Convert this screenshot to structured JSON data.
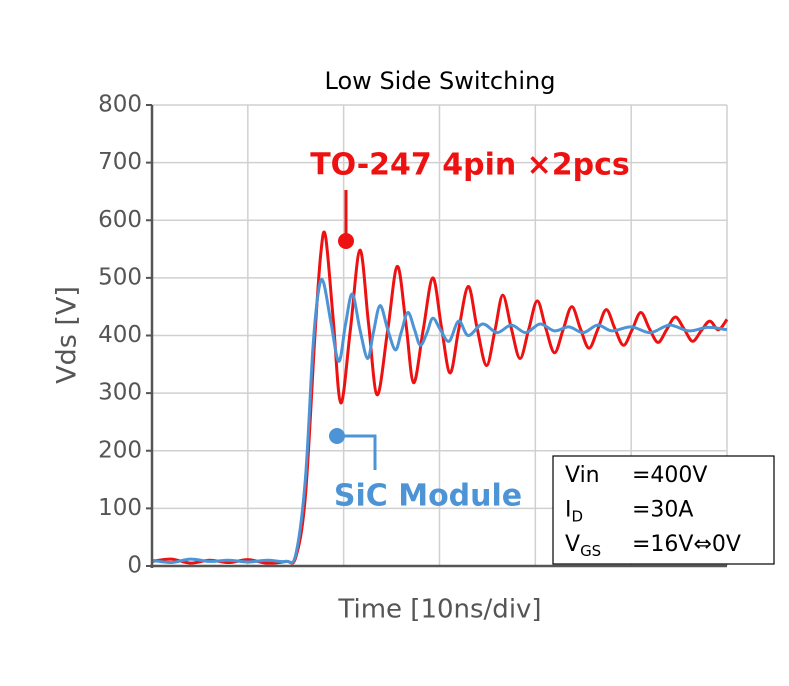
{
  "chart_data": {
    "type": "line",
    "title": "Low Side Switching",
    "ylabel": "Vds [V]",
    "xlabel": "Time [10ns/div]",
    "xlim": [
      0,
      6
    ],
    "ylim": [
      0,
      800
    ],
    "yticks": [
      0,
      100,
      200,
      300,
      400,
      500,
      600,
      700,
      800
    ],
    "grid": true,
    "series": [
      {
        "name": "TO-247 4pin ×2pcs",
        "color": "#ee1111",
        "x": [
          0,
          0.2,
          0.4,
          0.6,
          0.8,
          1.0,
          1.2,
          1.4,
          1.5,
          1.6,
          1.7,
          1.76,
          1.81,
          1.89,
          1.97,
          2.07,
          2.17,
          2.26,
          2.35,
          2.46,
          2.56,
          2.65,
          2.73,
          2.83,
          2.93,
          3.02,
          3.11,
          3.2,
          3.3,
          3.39,
          3.49,
          3.58,
          3.66,
          3.75,
          3.84,
          3.93,
          4.02,
          4.11,
          4.2,
          4.29,
          4.38,
          4.47,
          4.56,
          4.65,
          4.74,
          4.83,
          4.92,
          5.01,
          5.1,
          5.19,
          5.28,
          5.37,
          5.46,
          5.55,
          5.64,
          5.73,
          5.82,
          5.91,
          6.0
        ],
        "values": [
          8,
          12,
          5,
          10,
          6,
          11,
          5,
          8,
          15,
          120,
          400,
          540,
          573,
          430,
          283,
          410,
          548,
          420,
          297,
          410,
          520,
          420,
          318,
          410,
          500,
          415,
          335,
          410,
          485,
          415,
          348,
          410,
          470,
          412,
          360,
          410,
          460,
          412,
          370,
          410,
          450,
          412,
          378,
          410,
          445,
          412,
          383,
          410,
          440,
          412,
          388,
          410,
          432,
          412,
          390,
          408,
          425,
          410,
          428
        ]
      },
      {
        "name": "SiC Module",
        "color": "#4d94d6",
        "x": [
          0,
          0.2,
          0.4,
          0.6,
          0.8,
          1.0,
          1.2,
          1.4,
          1.5,
          1.6,
          1.68,
          1.74,
          1.79,
          1.87,
          1.95,
          2.02,
          2.09,
          2.17,
          2.25,
          2.31,
          2.38,
          2.46,
          2.54,
          2.6,
          2.67,
          2.74,
          2.8,
          2.87,
          2.93,
          3.01,
          3.1,
          3.2,
          3.3,
          3.45,
          3.6,
          3.75,
          3.9,
          4.05,
          4.2,
          4.35,
          4.5,
          4.65,
          4.8,
          5.0,
          5.2,
          5.4,
          5.6,
          5.8,
          6.0
        ],
        "values": [
          10,
          6,
          12,
          8,
          10,
          7,
          10,
          8,
          20,
          150,
          380,
          480,
          492,
          420,
          355,
          420,
          472,
          410,
          360,
          405,
          452,
          410,
          375,
          405,
          440,
          410,
          383,
          405,
          430,
          410,
          390,
          425,
          400,
          420,
          405,
          418,
          405,
          420,
          408,
          415,
          405,
          418,
          408,
          415,
          405,
          418,
          408,
          414,
          410
        ]
      }
    ],
    "conditions": [
      {
        "label": "Vin",
        "value": "=400V"
      },
      {
        "label": "I",
        "sub": "D",
        "value": "=30A"
      },
      {
        "label": "V",
        "sub": "GS",
        "value": "=16V⇔0V"
      }
    ]
  }
}
